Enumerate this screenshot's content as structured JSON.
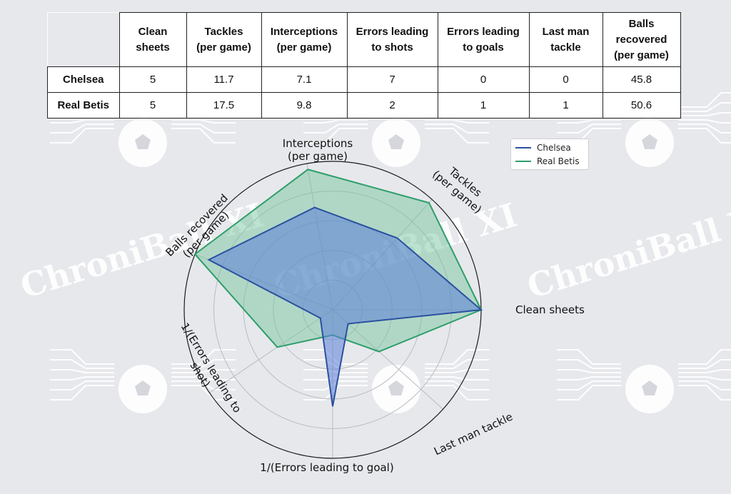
{
  "watermark_text": "ChroniBall XI",
  "table": {
    "columns": [
      "Clean sheets",
      "Tackles (per game)",
      "Interceptions (per game)",
      "Errors leading to shots",
      "Errors leading to goals",
      "Last man tackle",
      "Balls recovered (per game)"
    ],
    "rows": [
      {
        "team": "Chelsea",
        "values": [
          "5",
          "11.7",
          "7.1",
          "7",
          "0",
          "0",
          "45.8"
        ]
      },
      {
        "team": "Real Betis",
        "values": [
          "5",
          "17.5",
          "9.8",
          "2",
          "1",
          "1",
          "50.6"
        ]
      }
    ]
  },
  "chart_data": {
    "type": "radar",
    "axes": [
      {
        "label": "Clean sheets"
      },
      {
        "label": "Tackles (per game)"
      },
      {
        "label": "Interceptions (per game)"
      },
      {
        "label": "Balls recovered (per game)"
      },
      {
        "label": "1/(Errors leading to shot)"
      },
      {
        "label": "1/(Errors leading to goal)"
      },
      {
        "label": "Last man tackle"
      }
    ],
    "series": [
      {
        "name": "Chelsea",
        "color": "#2b50a0",
        "fill": "#5b7fd8",
        "values": [
          1.0,
          0.65,
          0.7,
          0.9,
          0.1,
          0.65,
          0.14
        ]
      },
      {
        "name": "Real Betis",
        "color": "#2e9e6a",
        "fill": "#6cc49a",
        "values": [
          1.0,
          0.97,
          0.96,
          1.0,
          0.45,
          0.17,
          0.42
        ]
      }
    ],
    "grid": true,
    "legend": "top-right"
  }
}
